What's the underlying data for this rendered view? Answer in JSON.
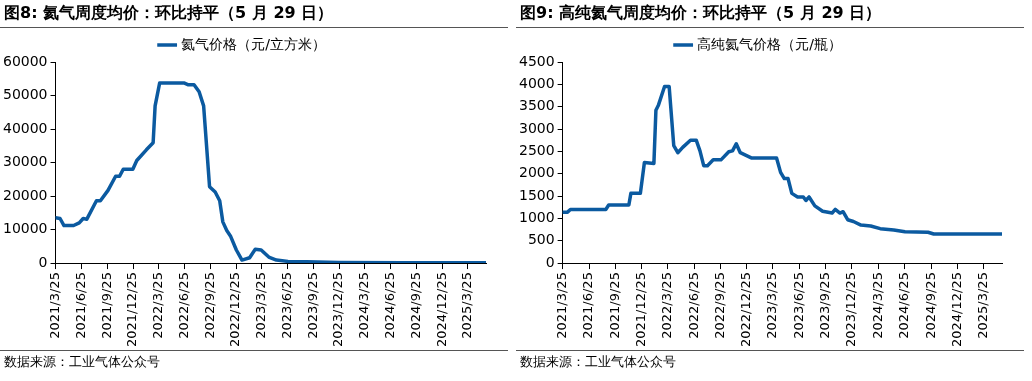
{
  "chart_data": [
    {
      "type": "line",
      "title": "图8:  氦气周度均价：环比持平（5 月 29 日）",
      "annotations": [
        "数据来源：工业气体公众号"
      ],
      "legend": "top",
      "grid": false,
      "x": [
        "2021-03-25",
        "2021-04-10",
        "2021-04-24",
        "2021-05-28",
        "2021-06-17",
        "2021-07-01",
        "2021-07-14",
        "2021-08-17",
        "2021-08-31",
        "2021-09-27",
        "2021-10-24",
        "2021-11-07",
        "2021-11-20",
        "2021-12-24",
        "2022-01-07",
        "2022-02-10",
        "2022-03-06",
        "2022-03-13",
        "2022-03-29",
        "2022-06-25",
        "2022-07-09",
        "2022-07-29",
        "2022-08-16",
        "2022-09-01",
        "2022-09-22",
        "2022-10-12",
        "2022-10-28",
        "2022-11-08",
        "2022-11-22",
        "2022-12-05",
        "2022-12-26",
        "2023-01-15",
        "2023-02-11",
        "2023-03-03",
        "2023-03-24",
        "2023-04-20",
        "2023-05-17",
        "2023-06-27",
        "2023-09-02",
        "2023-12-26",
        "2024-08-07",
        "2025-05-29"
      ],
      "series": [
        {
          "name": "氦气价格（元/立方米）",
          "color": "#0b5aa0",
          "values": [
            13500,
            13300,
            11200,
            11200,
            12000,
            13300,
            13100,
            18600,
            18600,
            21700,
            25900,
            25900,
            28000,
            28000,
            30600,
            33800,
            35900,
            46900,
            53700,
            53700,
            53200,
            53200,
            51100,
            46900,
            22800,
            21200,
            18600,
            12300,
            9700,
            8100,
            3900,
            900,
            1600,
            4100,
            3900,
            1800,
            900,
            500,
            400,
            200,
            100,
            100
          ]
        }
      ],
      "xlim": [
        "2021-03-25",
        "2025-05-29"
      ],
      "xticks": [
        {
          "value": "2021-03-25",
          "label": "2021/3/25"
        },
        {
          "value": "2021-06-25",
          "label": "2021/6/25"
        },
        {
          "value": "2021-09-25",
          "label": "2021/9/25"
        },
        {
          "value": "2021-12-25",
          "label": "2021/12/25"
        },
        {
          "value": "2022-03-25",
          "label": "2022/3/25"
        },
        {
          "value": "2022-06-25",
          "label": "2022/6/25"
        },
        {
          "value": "2022-09-25",
          "label": "2022/9/25"
        },
        {
          "value": "2022-12-25",
          "label": "2022/12/25"
        },
        {
          "value": "2023-03-25",
          "label": "2023/3/25"
        },
        {
          "value": "2023-06-25",
          "label": "2023/6/25"
        },
        {
          "value": "2023-09-25",
          "label": "2023/9/25"
        },
        {
          "value": "2023-12-25",
          "label": "2023/12/25"
        },
        {
          "value": "2024-03-25",
          "label": "2024/3/25"
        },
        {
          "value": "2024-06-25",
          "label": "2024/6/25"
        },
        {
          "value": "2024-09-25",
          "label": "2024/9/25"
        },
        {
          "value": "2024-12-25",
          "label": "2024/12/25"
        },
        {
          "value": "2025-03-25",
          "label": "2025/3/25"
        }
      ],
      "ylim": [
        0,
        60000
      ],
      "yticks": [
        0,
        10000,
        20000,
        30000,
        40000,
        50000,
        60000
      ]
    },
    {
      "type": "line",
      "title": "图9:  高纯氦气周度均价：环比持平（5 月 29 日）",
      "annotations": [
        "数据来源：工业气体公众号"
      ],
      "legend": "top",
      "grid": false,
      "x": [
        "2021-03-25",
        "2021-04-11",
        "2021-04-21",
        "2021-08-22",
        "2021-09-01",
        "2021-11-10",
        "2021-11-17",
        "2021-12-20",
        "2022-01-03",
        "2022-02-05",
        "2022-02-12",
        "2022-02-21",
        "2022-03-14",
        "2022-03-30",
        "2022-04-15",
        "2022-04-29",
        "2022-05-16",
        "2022-06-12",
        "2022-07-02",
        "2022-07-15",
        "2022-07-28",
        "2022-08-10",
        "2022-08-30",
        "2022-09-26",
        "2022-10-23",
        "2022-11-05",
        "2022-11-18",
        "2022-12-02",
        "2023-01-11",
        "2023-04-07",
        "2023-04-21",
        "2023-05-04",
        "2023-05-17",
        "2023-05-30",
        "2023-06-19",
        "2023-07-09",
        "2023-07-18",
        "2023-07-29",
        "2023-08-18",
        "2023-09-14",
        "2023-10-17",
        "2023-10-28",
        "2023-11-13",
        "2023-11-24",
        "2023-12-10",
        "2023-12-30",
        "2024-01-25",
        "2024-02-28",
        "2024-04-01",
        "2024-05-18",
        "2024-06-26",
        "2024-09-14",
        "2024-10-04",
        "2025-05-29"
      ],
      "series": [
        {
          "name": "高纯氦气价格（元/瓶）",
          "color": "#0b5aa0",
          "values": [
            1140,
            1140,
            1200,
            1200,
            1300,
            1300,
            1560,
            1560,
            2250,
            2230,
            3420,
            3540,
            3950,
            3950,
            2630,
            2470,
            2590,
            2750,
            2750,
            2510,
            2180,
            2180,
            2310,
            2310,
            2490,
            2510,
            2670,
            2470,
            2350,
            2350,
            2030,
            1890,
            1890,
            1560,
            1480,
            1480,
            1400,
            1480,
            1280,
            1160,
            1120,
            1200,
            1120,
            1150,
            970,
            930,
            850,
            830,
            770,
            740,
            700,
            690,
            650,
            650
          ]
        }
      ],
      "xlim": [
        "2021-03-25",
        "2025-05-29"
      ],
      "xticks": [
        {
          "value": "2021-03-25",
          "label": "2021/3/25"
        },
        {
          "value": "2021-06-25",
          "label": "2021/6/25"
        },
        {
          "value": "2021-09-25",
          "label": "2021/9/25"
        },
        {
          "value": "2021-12-25",
          "label": "2021/12/25"
        },
        {
          "value": "2022-03-25",
          "label": "2022/3/25"
        },
        {
          "value": "2022-06-25",
          "label": "2022/6/25"
        },
        {
          "value": "2022-09-25",
          "label": "2022/9/25"
        },
        {
          "value": "2022-12-25",
          "label": "2022/12/25"
        },
        {
          "value": "2023-03-25",
          "label": "2023/3/25"
        },
        {
          "value": "2023-06-25",
          "label": "2023/6/25"
        },
        {
          "value": "2023-09-25",
          "label": "2023/9/25"
        },
        {
          "value": "2023-12-25",
          "label": "2023/12/25"
        },
        {
          "value": "2024-03-25",
          "label": "2024/3/25"
        },
        {
          "value": "2024-06-25",
          "label": "2024/6/25"
        },
        {
          "value": "2024-09-25",
          "label": "2024/9/25"
        },
        {
          "value": "2024-12-25",
          "label": "2024/12/25"
        },
        {
          "value": "2025-03-25",
          "label": "2025/3/25"
        }
      ],
      "ylim": [
        0,
        4500
      ],
      "yticks": [
        0,
        500,
        1000,
        1500,
        2000,
        2500,
        3000,
        3500,
        4000,
        4500
      ]
    }
  ]
}
